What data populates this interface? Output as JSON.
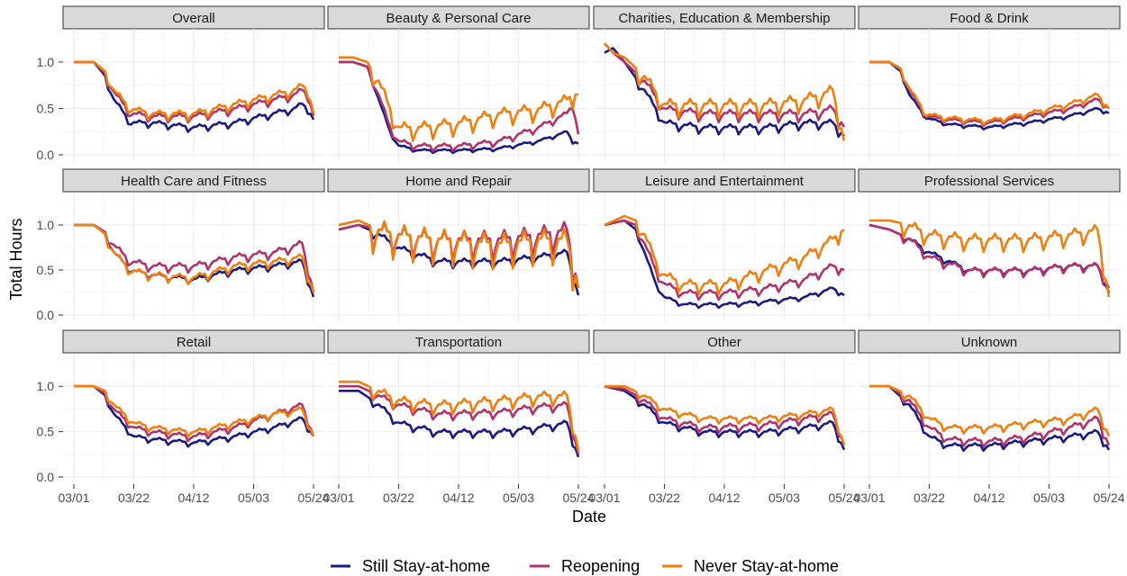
{
  "chart_data": {
    "type": "line",
    "xlabel": "Date",
    "ylabel": "Total Hours",
    "x_ticks": [
      "03/01",
      "03/22",
      "04/12",
      "05/03",
      "05/24"
    ],
    "y_ticks": [
      "0.0",
      "0.5",
      "1.0"
    ],
    "ylim": [
      0,
      1.3
    ],
    "x_range_days": [
      0,
      84
    ],
    "grid": true,
    "legend_position": "bottom",
    "series_defs": [
      {
        "name": "Still Stay-at-home",
        "color": "#1a1a80"
      },
      {
        "name": "Reopening",
        "color": "#b0336b"
      },
      {
        "name": "Never Stay-at-home",
        "color": "#f07f10"
      }
    ],
    "panels": [
      {
        "title": "Overall",
        "x_key_days": [
          0,
          7,
          11,
          14,
          20,
          28,
          42,
          56,
          70,
          77,
          80,
          82,
          84
        ],
        "series": [
          [
            1.0,
            1.0,
            0.85,
            0.6,
            0.35,
            0.35,
            0.3,
            0.35,
            0.45,
            0.5,
            0.55,
            0.5,
            0.38
          ],
          [
            1.0,
            1.0,
            0.88,
            0.68,
            0.45,
            0.42,
            0.42,
            0.5,
            0.6,
            0.65,
            0.7,
            0.65,
            0.42
          ],
          [
            1.0,
            1.0,
            0.9,
            0.7,
            0.5,
            0.45,
            0.45,
            0.55,
            0.65,
            0.7,
            0.75,
            0.7,
            0.45
          ]
        ],
        "amp": [
          0.06,
          0.07,
          0.08
        ]
      },
      {
        "title": "Beauty & Personal Care",
        "x_key_days": [
          0,
          5,
          10,
          14,
          18,
          21,
          28,
          42,
          56,
          70,
          80,
          82,
          84
        ],
        "series": [
          [
            1.0,
            1.0,
            0.95,
            0.6,
            0.25,
            0.1,
            0.05,
            0.05,
            0.07,
            0.15,
            0.25,
            0.15,
            0.12
          ],
          [
            1.0,
            1.0,
            0.95,
            0.65,
            0.3,
            0.15,
            0.1,
            0.1,
            0.15,
            0.3,
            0.45,
            0.55,
            0.22
          ],
          [
            1.05,
            1.05,
            1.0,
            0.8,
            0.5,
            0.3,
            0.3,
            0.35,
            0.45,
            0.5,
            0.6,
            0.65,
            0.65
          ]
        ],
        "amp": [
          0.03,
          0.06,
          0.15
        ]
      },
      {
        "title": "Charities, Education & Membership",
        "x_key_days": [
          0,
          3,
          7,
          14,
          21,
          35,
          56,
          70,
          80,
          84
        ],
        "series": [
          [
            1.1,
            1.15,
            1.0,
            0.7,
            0.35,
            0.3,
            0.3,
            0.35,
            0.35,
            0.2
          ],
          [
            1.2,
            1.1,
            1.0,
            0.8,
            0.5,
            0.45,
            0.45,
            0.45,
            0.5,
            0.3
          ],
          [
            1.2,
            1.1,
            1.05,
            0.85,
            0.55,
            0.55,
            0.55,
            0.6,
            0.7,
            0.15
          ]
        ],
        "amp": [
          0.08,
          0.1,
          0.15
        ]
      },
      {
        "title": "Food & Drink",
        "x_key_days": [
          0,
          7,
          11,
          14,
          20,
          28,
          42,
          56,
          70,
          80,
          84
        ],
        "series": [
          [
            1.0,
            1.0,
            0.9,
            0.65,
            0.4,
            0.33,
            0.3,
            0.35,
            0.42,
            0.5,
            0.45
          ],
          [
            1.0,
            1.0,
            0.92,
            0.7,
            0.42,
            0.38,
            0.35,
            0.42,
            0.5,
            0.6,
            0.5
          ],
          [
            1.0,
            1.0,
            0.93,
            0.72,
            0.44,
            0.4,
            0.37,
            0.45,
            0.55,
            0.65,
            0.5
          ]
        ],
        "amp": [
          0.03,
          0.04,
          0.05
        ]
      },
      {
        "title": "Health Care and Fitness",
        "x_key_days": [
          0,
          7,
          11,
          14,
          20,
          28,
          42,
          56,
          70,
          80,
          84
        ],
        "series": [
          [
            1.0,
            1.0,
            0.9,
            0.7,
            0.5,
            0.45,
            0.4,
            0.5,
            0.55,
            0.6,
            0.2
          ],
          [
            1.0,
            1.0,
            0.92,
            0.78,
            0.6,
            0.55,
            0.55,
            0.65,
            0.7,
            0.8,
            0.25
          ],
          [
            1.0,
            1.0,
            0.9,
            0.7,
            0.5,
            0.45,
            0.42,
            0.55,
            0.6,
            0.65,
            0.25
          ]
        ],
        "amp": [
          0.06,
          0.08,
          0.08
        ]
      },
      {
        "title": "Home and Repair",
        "x_key_days": [
          0,
          7,
          14,
          21,
          35,
          56,
          70,
          80,
          84
        ],
        "series": [
          [
            0.95,
            1.0,
            0.9,
            0.75,
            0.6,
            0.6,
            0.65,
            0.7,
            0.22
          ],
          [
            0.95,
            1.0,
            0.95,
            0.9,
            0.85,
            0.85,
            0.9,
            0.95,
            0.3
          ],
          [
            1.0,
            1.05,
            0.95,
            0.9,
            0.85,
            0.8,
            0.85,
            0.85,
            0.3
          ]
        ],
        "amp": [
          0.08,
          0.25,
          0.3
        ]
      },
      {
        "title": "Leisure and Entertainment",
        "x_key_days": [
          0,
          7,
          11,
          14,
          18,
          21,
          28,
          42,
          56,
          70,
          80,
          84
        ],
        "series": [
          [
            1.0,
            1.05,
            0.95,
            0.7,
            0.35,
            0.2,
            0.12,
            0.12,
            0.15,
            0.2,
            0.3,
            0.22
          ],
          [
            1.0,
            1.05,
            1.0,
            0.8,
            0.5,
            0.35,
            0.25,
            0.25,
            0.3,
            0.4,
            0.55,
            0.5
          ],
          [
            1.0,
            1.1,
            1.05,
            0.9,
            0.6,
            0.45,
            0.35,
            0.35,
            0.5,
            0.65,
            0.85,
            0.95
          ]
        ],
        "amp": [
          0.04,
          0.08,
          0.12
        ]
      },
      {
        "title": "Professional Services",
        "x_key_days": [
          0,
          7,
          14,
          21,
          35,
          56,
          70,
          80,
          84
        ],
        "series": [
          [
            1.0,
            0.95,
            0.85,
            0.7,
            0.5,
            0.5,
            0.55,
            0.55,
            0.25
          ],
          [
            1.0,
            0.95,
            0.85,
            0.65,
            0.5,
            0.5,
            0.55,
            0.55,
            0.3
          ],
          [
            1.05,
            1.05,
            1.0,
            0.9,
            0.85,
            0.85,
            0.9,
            0.95,
            0.2
          ]
        ],
        "amp": [
          0.06,
          0.08,
          0.15
        ]
      },
      {
        "title": "Retail",
        "x_key_days": [
          0,
          7,
          11,
          14,
          21,
          28,
          42,
          56,
          70,
          80,
          84
        ],
        "series": [
          [
            1.0,
            1.0,
            0.9,
            0.7,
            0.45,
            0.42,
            0.38,
            0.45,
            0.55,
            0.65,
            0.45
          ],
          [
            1.0,
            1.0,
            0.92,
            0.75,
            0.55,
            0.5,
            0.45,
            0.55,
            0.7,
            0.8,
            0.45
          ],
          [
            1.0,
            1.0,
            0.95,
            0.8,
            0.6,
            0.55,
            0.5,
            0.6,
            0.7,
            0.75,
            0.45
          ]
        ],
        "amp": [
          0.05,
          0.06,
          0.06
        ]
      },
      {
        "title": "Transportation",
        "x_key_days": [
          0,
          7,
          14,
          21,
          35,
          56,
          70,
          80,
          84
        ],
        "series": [
          [
            0.95,
            0.95,
            0.8,
            0.6,
            0.5,
            0.5,
            0.55,
            0.6,
            0.22
          ],
          [
            1.0,
            1.0,
            0.9,
            0.8,
            0.7,
            0.72,
            0.78,
            0.8,
            0.25
          ],
          [
            1.05,
            1.05,
            0.95,
            0.85,
            0.8,
            0.85,
            0.9,
            0.9,
            0.3
          ]
        ],
        "amp": [
          0.07,
          0.08,
          0.12
        ]
      },
      {
        "title": "Other",
        "x_key_days": [
          0,
          7,
          14,
          21,
          35,
          56,
          70,
          80,
          84
        ],
        "series": [
          [
            1.0,
            0.95,
            0.8,
            0.6,
            0.5,
            0.5,
            0.55,
            0.6,
            0.3
          ],
          [
            1.0,
            0.97,
            0.85,
            0.65,
            0.55,
            0.58,
            0.65,
            0.7,
            0.35
          ],
          [
            1.0,
            1.0,
            0.9,
            0.75,
            0.65,
            0.65,
            0.7,
            0.75,
            0.35
          ]
        ],
        "amp": [
          0.06,
          0.07,
          0.06
        ]
      },
      {
        "title": "Unknown",
        "x_key_days": [
          0,
          7,
          14,
          21,
          28,
          42,
          56,
          70,
          80,
          84
        ],
        "series": [
          [
            1.0,
            1.0,
            0.8,
            0.45,
            0.35,
            0.35,
            0.4,
            0.45,
            0.5,
            0.3
          ],
          [
            1.0,
            1.0,
            0.85,
            0.55,
            0.42,
            0.4,
            0.45,
            0.55,
            0.65,
            0.35
          ],
          [
            1.0,
            1.0,
            0.9,
            0.65,
            0.55,
            0.55,
            0.6,
            0.65,
            0.75,
            0.45
          ]
        ],
        "amp": [
          0.06,
          0.07,
          0.07
        ]
      }
    ]
  }
}
